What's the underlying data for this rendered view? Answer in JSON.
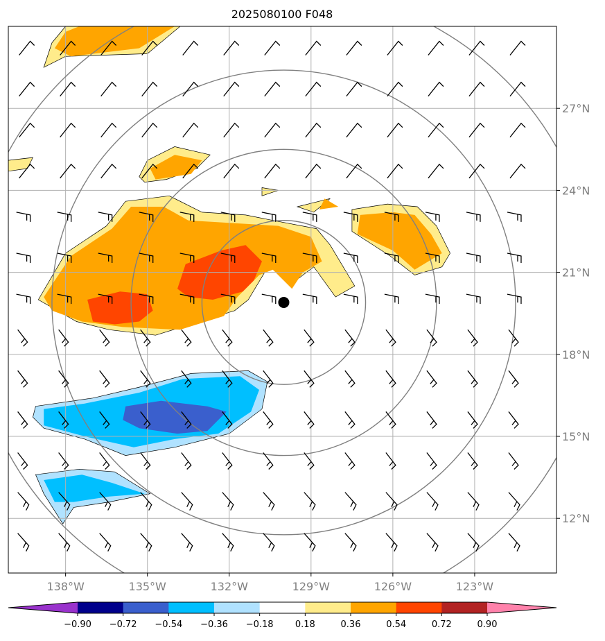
{
  "chart_data": {
    "type": "contour-map",
    "title": "2025080100 F048",
    "x_ticks": [
      "138°W",
      "135°W",
      "132°W",
      "129°W",
      "126°W",
      "123°W"
    ],
    "x_tick_values": [
      -138,
      -135,
      -132,
      -129,
      -126,
      -123
    ],
    "y_ticks": [
      "27°N",
      "24°N",
      "21°N",
      "18°N",
      "15°N",
      "12°N"
    ],
    "y_tick_values": [
      27,
      24,
      21,
      18,
      15,
      12
    ],
    "xlim": [
      -140.1,
      -120.0
    ],
    "ylim": [
      10.0,
      30.0
    ],
    "grid": true,
    "center": {
      "lon": -130.0,
      "lat": 19.9
    },
    "range_rings_deg": [
      3,
      5.6,
      8.5,
      11.5
    ],
    "colorbar": {
      "levels": [
        "-0.90",
        "-0.72",
        "-0.54",
        "-0.36",
        "-0.18",
        "0.18",
        "0.36",
        "0.54",
        "0.72",
        "0.90"
      ],
      "colors": [
        "#9932cc",
        "#00008b",
        "#3a5fcd",
        "#00bfff",
        "#b0e2ff",
        "#ffffff",
        "#ffec8b",
        "#ffa500",
        "#ff4500",
        "#b22222",
        "#ff82ab"
      ],
      "extend": "both"
    },
    "series": [
      {
        "level": 0.18,
        "color": "#ffec8b",
        "polygons": [
          [
            [
              -138,
              30
            ],
            [
              -133.8,
              30
            ],
            [
              -135,
              29
            ],
            [
              -138,
              28.9
            ],
            [
              -138.8,
              28.5
            ],
            [
              -138.5,
              29.4
            ]
          ],
          [
            [
              -140.1,
              25.1
            ],
            [
              -139.2,
              25.2
            ],
            [
              -139.4,
              24.8
            ],
            [
              -140.1,
              24.7
            ]
          ],
          [
            [
              -135.3,
              24.5
            ],
            [
              -135,
              25.1
            ],
            [
              -134,
              25.6
            ],
            [
              -132.7,
              25.3
            ],
            [
              -133.2,
              24.8
            ],
            [
              -134.3,
              24.4
            ],
            [
              -135.1,
              24.3
            ]
          ],
          [
            [
              -139,
              20
            ],
            [
              -138,
              21.7
            ],
            [
              -136.5,
              22.7
            ],
            [
              -135.8,
              23.6
            ],
            [
              -134.2,
              23.8
            ],
            [
              -133,
              23.2
            ],
            [
              -131.4,
              23.1
            ],
            [
              -130.4,
              22.9
            ],
            [
              -128.8,
              22.6
            ],
            [
              -128.3,
              22
            ],
            [
              -127.4,
              20.5
            ],
            [
              -128.1,
              20.1
            ],
            [
              -128.9,
              21.2
            ],
            [
              -129.7,
              20.6
            ],
            [
              -130.3,
              21.3
            ],
            [
              -130.7,
              21
            ],
            [
              -131.3,
              20
            ],
            [
              -131.8,
              19.6
            ],
            [
              -134.7,
              18.7
            ],
            [
              -136.4,
              18.9
            ],
            [
              -137.6,
              19.2
            ]
          ],
          [
            [
              -127.5,
              23.3
            ],
            [
              -126.2,
              23.5
            ],
            [
              -125.1,
              23.4
            ],
            [
              -124.4,
              22.7
            ],
            [
              -123.9,
              21.7
            ],
            [
              -124.2,
              21.2
            ],
            [
              -125.2,
              20.9
            ],
            [
              -126.1,
              21.6
            ],
            [
              -127.5,
              22.5
            ]
          ],
          [
            [
              -129.5,
              23.4
            ],
            [
              -128.3,
              23.7
            ],
            [
              -128.9,
              23.2
            ]
          ],
          [
            [
              -130.8,
              24.1
            ],
            [
              -130.2,
              24
            ],
            [
              -130.8,
              23.8
            ]
          ]
        ]
      },
      {
        "level": 0.36,
        "color": "#ffa500",
        "polygons": [
          [
            [
              -137.5,
              30
            ],
            [
              -134,
              30
            ],
            [
              -135.3,
              29.2
            ],
            [
              -137.8,
              28.9
            ],
            [
              -138.4,
              29.2
            ],
            [
              -138,
              29.8
            ]
          ],
          [
            [
              -134.9,
              24.8
            ],
            [
              -134,
              25.3
            ],
            [
              -133,
              25.1
            ],
            [
              -133.4,
              24.6
            ],
            [
              -134.7,
              24.4
            ]
          ],
          [
            [
              -138.8,
              20.1
            ],
            [
              -137.8,
              21.6
            ],
            [
              -136.3,
              22.6
            ],
            [
              -135.6,
              23.4
            ],
            [
              -134.4,
              23.4
            ],
            [
              -133.5,
              22.9
            ],
            [
              -131.8,
              22.8
            ],
            [
              -130.2,
              22.7
            ],
            [
              -129.0,
              22.3
            ],
            [
              -128.6,
              21.4
            ],
            [
              -129.3,
              21
            ],
            [
              -129.7,
              20.4
            ],
            [
              -130.4,
              21.1
            ],
            [
              -130.9,
              20.9
            ],
            [
              -131.7,
              20.1
            ],
            [
              -132.2,
              19.4
            ],
            [
              -133.8,
              18.9
            ],
            [
              -135.9,
              19.0
            ],
            [
              -137.4,
              19.2
            ],
            [
              -138.5,
              19.6
            ]
          ],
          [
            [
              -127.2,
              23.1
            ],
            [
              -126,
              23.2
            ],
            [
              -125.2,
              23.1
            ],
            [
              -124.6,
              22.4
            ],
            [
              -124.2,
              21.7
            ],
            [
              -125.2,
              21.1
            ],
            [
              -126,
              21.8
            ],
            [
              -127.3,
              22.4
            ]
          ],
          [
            [
              -128.5,
              23.7
            ],
            [
              -128.7,
              23.3
            ],
            [
              -128,
              23.4
            ]
          ]
        ]
      },
      {
        "level": 0.54,
        "color": "#ff4500",
        "polygons": [
          [
            [
              -137,
              19.2
            ],
            [
              -137.2,
              20
            ],
            [
              -136,
              20.3
            ],
            [
              -135,
              20.2
            ],
            [
              -134.8,
              19.6
            ],
            [
              -135.3,
              19.2
            ],
            [
              -136.2,
              19.1
            ]
          ],
          [
            [
              -133.9,
              20.4
            ],
            [
              -133.6,
              21.3
            ],
            [
              -132.3,
              21.8
            ],
            [
              -131.4,
              22
            ],
            [
              -130.8,
              21.4
            ],
            [
              -131.1,
              20.7
            ],
            [
              -131.5,
              20.3
            ],
            [
              -132.6,
              20
            ],
            [
              -133.5,
              20.1
            ]
          ]
        ]
      },
      {
        "level": -0.18,
        "color": "#b0e2ff",
        "polygons": [
          [
            [
              -139.1,
              16.1
            ],
            [
              -137,
              16.4
            ],
            [
              -135.3,
              16.8
            ],
            [
              -133.4,
              17.3
            ],
            [
              -131.3,
              17.4
            ],
            [
              -130.6,
              17
            ],
            [
              -130.8,
              16
            ],
            [
              -132,
              15.1
            ],
            [
              -134,
              14.6
            ],
            [
              -135.8,
              14.3
            ],
            [
              -137.3,
              14.9
            ],
            [
              -138.8,
              15.3
            ],
            [
              -139.2,
              15.7
            ]
          ],
          [
            [
              -139.1,
              13.6
            ],
            [
              -137.5,
              13.8
            ],
            [
              -136.2,
              13.7
            ],
            [
              -134.9,
              12.9
            ],
            [
              -136.4,
              12.6
            ],
            [
              -137.7,
              12.4
            ],
            [
              -138.1,
              11.8
            ],
            [
              -138.8,
              12.9
            ]
          ]
        ]
      },
      {
        "level": -0.36,
        "color": "#00bfff",
        "polygons": [
          [
            [
              -138.8,
              16
            ],
            [
              -137.3,
              16.2
            ],
            [
              -135.3,
              16.6
            ],
            [
              -133.7,
              17.1
            ],
            [
              -131.6,
              17.2
            ],
            [
              -130.9,
              16.7
            ],
            [
              -131.2,
              15.9
            ],
            [
              -132.4,
              15.1
            ],
            [
              -134,
              14.9
            ],
            [
              -135.5,
              14.6
            ],
            [
              -137.3,
              15
            ],
            [
              -138.8,
              15.4
            ]
          ],
          [
            [
              -138.8,
              13.4
            ],
            [
              -137.4,
              13.6
            ],
            [
              -136.3,
              13.3
            ],
            [
              -135.1,
              12.9
            ],
            [
              -136.4,
              12.8
            ],
            [
              -137.7,
              12.6
            ],
            [
              -138.4,
              12.6
            ]
          ]
        ]
      },
      {
        "level": -0.54,
        "color": "#3a5fcd",
        "polygons": [
          [
            [
              -135.8,
              16.1
            ],
            [
              -134.5,
              16.3
            ],
            [
              -132.8,
              16.1
            ],
            [
              -132.1,
              15.9
            ],
            [
              -132.8,
              15.2
            ],
            [
              -133.9,
              15.1
            ],
            [
              -135.3,
              15.3
            ],
            [
              -135.9,
              15.6
            ]
          ]
        ]
      }
    ],
    "wind_barbs": "uniform grid of wind barbs across the map"
  },
  "colors": {
    "grid": "#b0b0b0",
    "rings": "#808080",
    "axes": "#000000",
    "tick_label": "#808080",
    "center_marker": "#000000"
  }
}
